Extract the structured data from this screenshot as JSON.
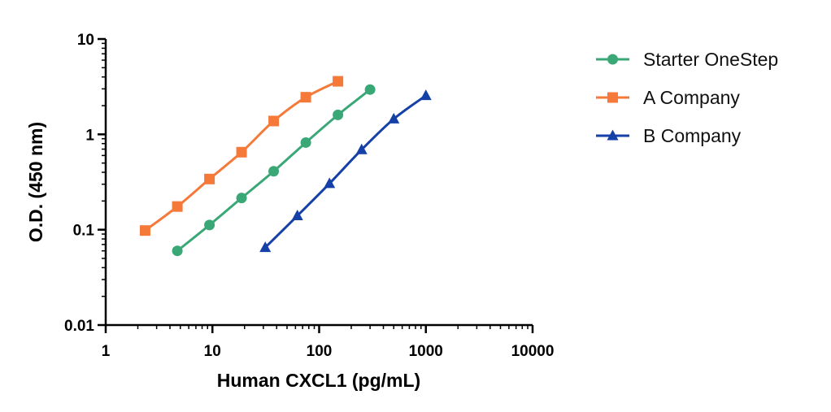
{
  "chart_data": {
    "type": "line",
    "title": "",
    "xlabel": "Human CXCL1 (pg/mL)",
    "ylabel": "O.D. (450 nm)",
    "xscale": "log",
    "yscale": "log",
    "xlim": [
      1,
      10000
    ],
    "ylim": [
      0.01,
      10
    ],
    "x_ticks": [
      1,
      10,
      100,
      1000,
      10000
    ],
    "x_tick_labels": [
      "1",
      "10",
      "100",
      "1000",
      "10000"
    ],
    "y_ticks": [
      0.01,
      0.1,
      1,
      10
    ],
    "y_tick_labels": [
      "0.01",
      "0.1",
      "1",
      "10"
    ],
    "grid": false,
    "legend_position": "right",
    "series": [
      {
        "name": "Starter OneStep",
        "color": "#3aa876",
        "marker": "circle",
        "x": [
          4.69,
          9.38,
          18.75,
          37.5,
          75,
          150,
          300
        ],
        "y": [
          0.06,
          0.112,
          0.215,
          0.41,
          0.82,
          1.6,
          2.95
        ]
      },
      {
        "name": "A Company",
        "color": "#f57a3a",
        "marker": "square",
        "x": [
          2.34,
          4.69,
          9.38,
          18.75,
          37.5,
          75,
          150
        ],
        "y": [
          0.098,
          0.175,
          0.34,
          0.65,
          1.38,
          2.45,
          3.6
        ]
      },
      {
        "name": "B Company",
        "color": "#1540a8",
        "marker": "triangle",
        "x": [
          31.25,
          62.5,
          125,
          250,
          500,
          1000
        ],
        "y": [
          0.065,
          0.14,
          0.305,
          0.69,
          1.45,
          2.55
        ]
      }
    ]
  }
}
